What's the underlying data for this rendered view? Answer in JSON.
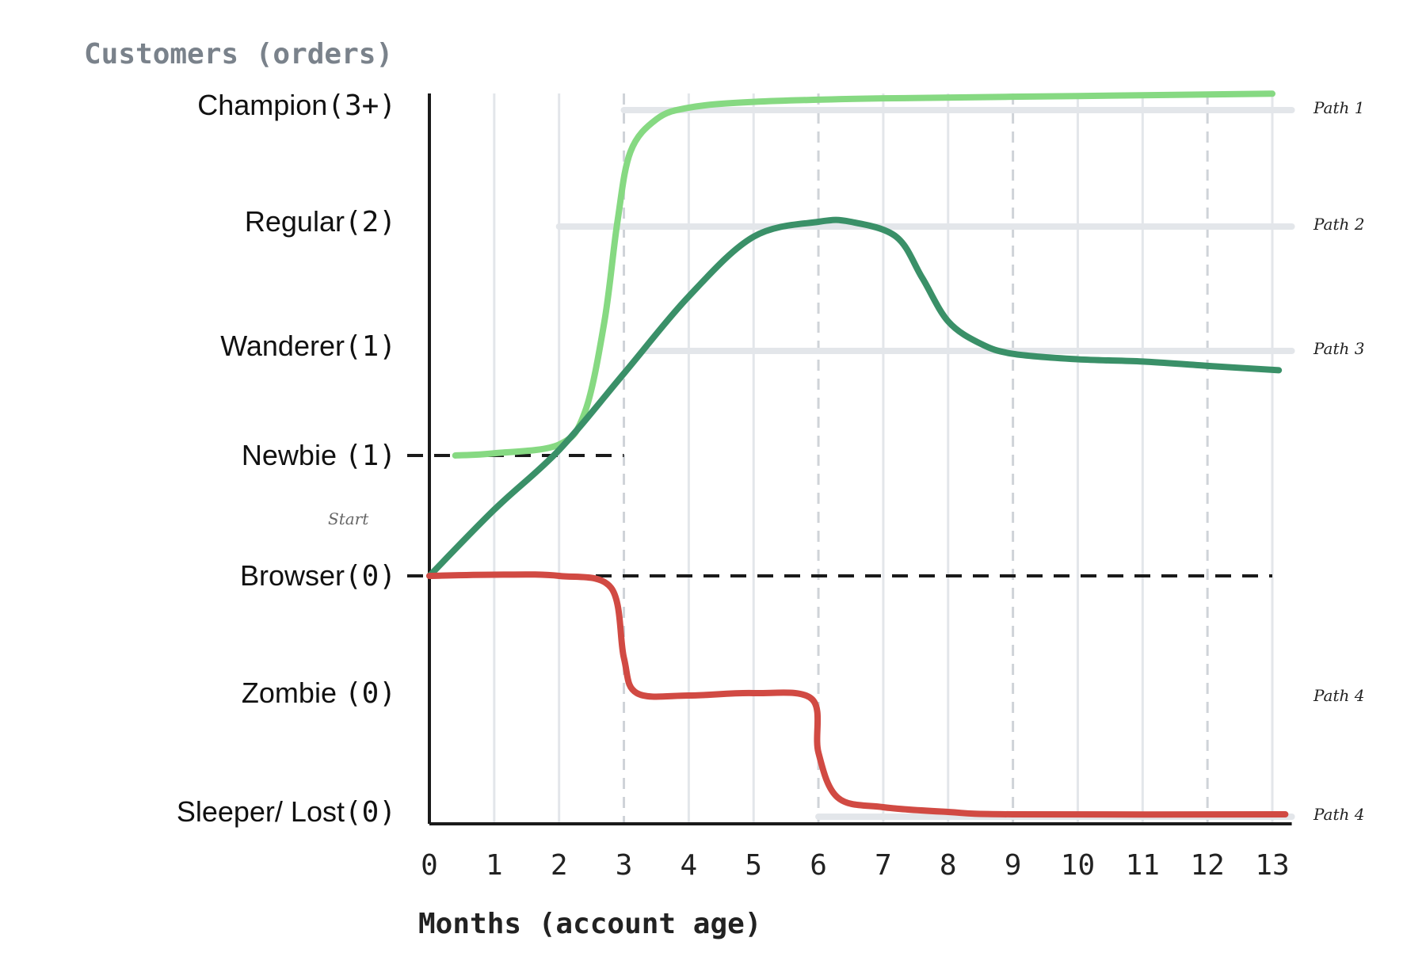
{
  "chart_data": {
    "type": "line",
    "title": "Customers (orders)",
    "xlabel": "Months (account age)",
    "ylabel": "Customers (orders)",
    "xlim": [
      0,
      13
    ],
    "x_ticks": [
      0,
      1,
      2,
      3,
      4,
      5,
      6,
      7,
      8,
      9,
      10,
      11,
      12,
      13
    ],
    "categories": [
      {
        "name": "Sleeper/ Lost",
        "count": "(0)"
      },
      {
        "name": "Zombie ",
        "count": "(0)"
      },
      {
        "name": "Browser",
        "count": "(0)"
      },
      {
        "name": "Newbie ",
        "count": "(1)"
      },
      {
        "name": "Wanderer",
        "count": "(1)"
      },
      {
        "name": "Regular",
        "count": "(2)"
      },
      {
        "name": "Champion",
        "count": "(3+)"
      }
    ],
    "start_label": "Start",
    "dashed_month_gridlines": [
      3,
      6,
      9,
      12
    ],
    "reference_lines": [
      {
        "level": 2,
        "from_month": 0,
        "to_month": 13
      },
      {
        "level": 3,
        "from_month": 0,
        "to_month": 3
      }
    ],
    "series": [
      {
        "label": "Path 1",
        "label_level": 6,
        "color": "#86d982",
        "points": [
          [
            0.4,
            3
          ],
          [
            1.0,
            3.02
          ],
          [
            2.0,
            3.1
          ],
          [
            2.4,
            3.4
          ],
          [
            2.7,
            4.2
          ],
          [
            2.9,
            5.0
          ],
          [
            3.1,
            5.6
          ],
          [
            3.5,
            5.88
          ],
          [
            4.0,
            5.98
          ],
          [
            5.0,
            6.03
          ],
          [
            7.0,
            6.06
          ],
          [
            10.0,
            6.08
          ],
          [
            13.0,
            6.1
          ]
        ]
      },
      {
        "label": "Path 2 / Path 3",
        "label_level": 5,
        "label2": "Path 3",
        "label2_level": 4,
        "color": "#3a9068",
        "points": [
          [
            0,
            2
          ],
          [
            1.0,
            2.55
          ],
          [
            2.0,
            3.05
          ],
          [
            3.0,
            3.75
          ],
          [
            4.0,
            4.4
          ],
          [
            5.0,
            4.88
          ],
          [
            6.0,
            5.0
          ],
          [
            6.5,
            5.0
          ],
          [
            7.2,
            4.88
          ],
          [
            7.6,
            4.55
          ],
          [
            8.0,
            4.2
          ],
          [
            8.5,
            4.02
          ],
          [
            9.0,
            3.93
          ],
          [
            10.0,
            3.88
          ],
          [
            11.0,
            3.86
          ],
          [
            12.0,
            3.82
          ],
          [
            13.1,
            3.78
          ]
        ]
      },
      {
        "label": "Path 4",
        "label_level": 1,
        "label2": "Path 4",
        "label2_level": 0,
        "color": "#d14a43",
        "points": [
          [
            0,
            2
          ],
          [
            1.0,
            2.01
          ],
          [
            2.0,
            2.0
          ],
          [
            2.8,
            1.9
          ],
          [
            3.0,
            1.3
          ],
          [
            3.2,
            1.0
          ],
          [
            4.0,
            0.98
          ],
          [
            5.0,
            1.0
          ],
          [
            5.9,
            0.95
          ],
          [
            6.0,
            0.5
          ],
          [
            6.3,
            0.12
          ],
          [
            7.0,
            0.04
          ],
          [
            8.0,
            0.0
          ],
          [
            9.0,
            -0.02
          ],
          [
            13.2,
            -0.02
          ]
        ]
      }
    ],
    "colors": {
      "axis": "#1a1a1a",
      "grid": "#e3e6ea",
      "dashed_grid": "#cfd3d8",
      "title": "#7a828b",
      "reference": "#1a1a1a"
    }
  }
}
